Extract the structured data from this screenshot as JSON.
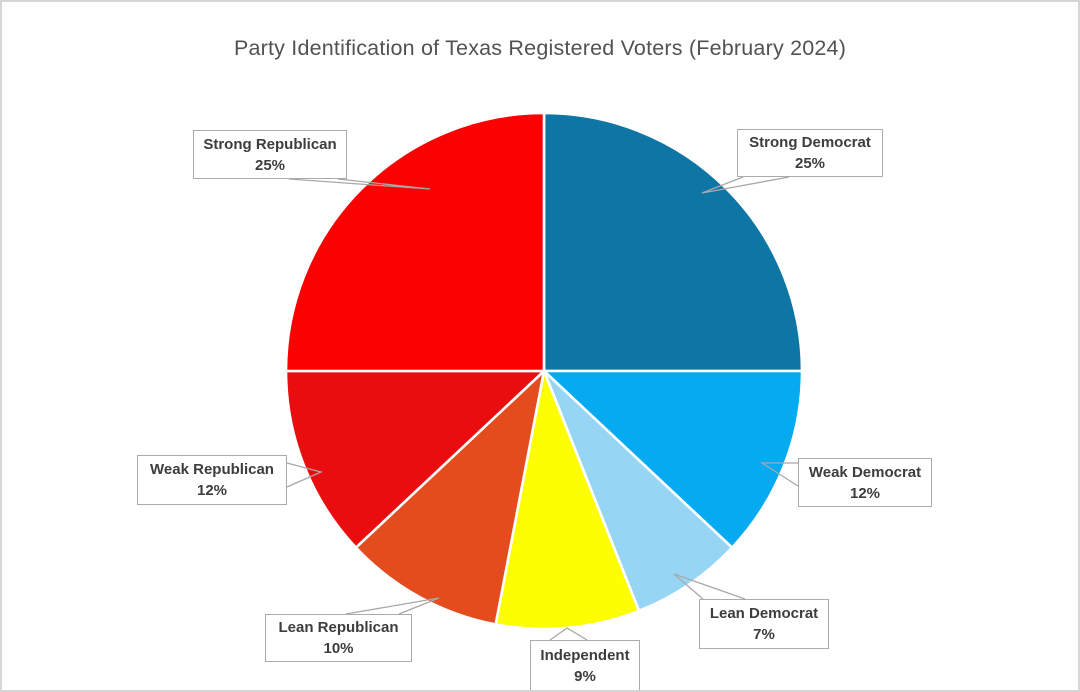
{
  "chart_data": {
    "type": "pie",
    "title": "Party Identification of Texas Registered Voters (February 2024)",
    "start_angle_deg": 0,
    "direction": "clockwise",
    "total": 100,
    "legend_position": "callout-labels",
    "slice_gap_color": "#ffffff",
    "callout_border_color": "#ababab",
    "callout_line_color": "#a8a8a8",
    "callout_text_color": "#3d3d3d",
    "title_color": "#525252",
    "slices": [
      {
        "label": "Strong Democrat",
        "value": 25,
        "display": "25%",
        "color": "#0e76a4"
      },
      {
        "label": "Weak Democrat",
        "value": 12,
        "display": "12%",
        "color": "#05aaf0"
      },
      {
        "label": "Lean Democrat",
        "value": 7,
        "display": "7%",
        "color": "#97d5f5"
      },
      {
        "label": "Independent",
        "value": 9,
        "display": "9%",
        "color": "#fdff00"
      },
      {
        "label": "Lean Republican",
        "value": 10,
        "display": "10%",
        "color": "#e44b1d"
      },
      {
        "label": "Weak Republican",
        "value": 12,
        "display": "12%",
        "color": "#e90d10"
      },
      {
        "label": "Strong Republican",
        "value": 25,
        "display": "25%",
        "color": "#fc0101"
      }
    ]
  }
}
